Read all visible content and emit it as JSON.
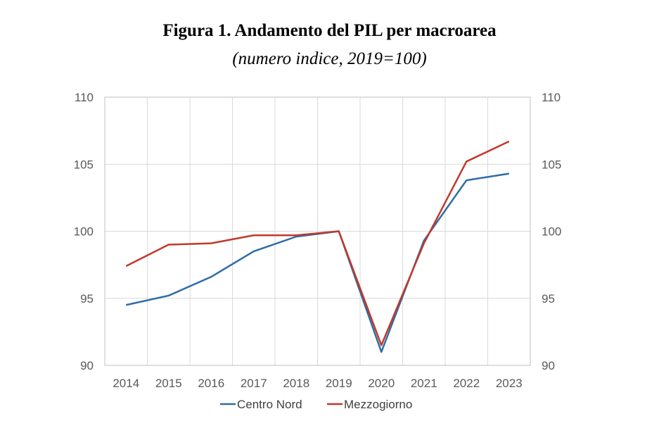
{
  "chart_data": {
    "type": "line",
    "title": "Figura 1. Andamento del PIL per macroarea",
    "subtitle": "(numero indice, 2019=100)",
    "x": [
      "2014",
      "2015",
      "2016",
      "2017",
      "2018",
      "2019",
      "2020",
      "2021",
      "2022",
      "2023"
    ],
    "ylim": [
      90,
      110
    ],
    "yticks": [
      90,
      95,
      100,
      105,
      110
    ],
    "secondary_yaxis": true,
    "grid": true,
    "legend_position": "bottom",
    "colors": {
      "Centro Nord": "#2e6ca8",
      "Mezzogiorno": "#c0392b"
    },
    "series": [
      {
        "name": "Centro Nord",
        "values": [
          94.5,
          95.2,
          96.6,
          98.5,
          99.6,
          100.0,
          91.0,
          99.3,
          103.8,
          104.3
        ]
      },
      {
        "name": "Mezzogiorno",
        "values": [
          97.4,
          99.0,
          99.1,
          99.7,
          99.7,
          100.0,
          91.5,
          99.1,
          105.2,
          106.7
        ]
      }
    ]
  }
}
